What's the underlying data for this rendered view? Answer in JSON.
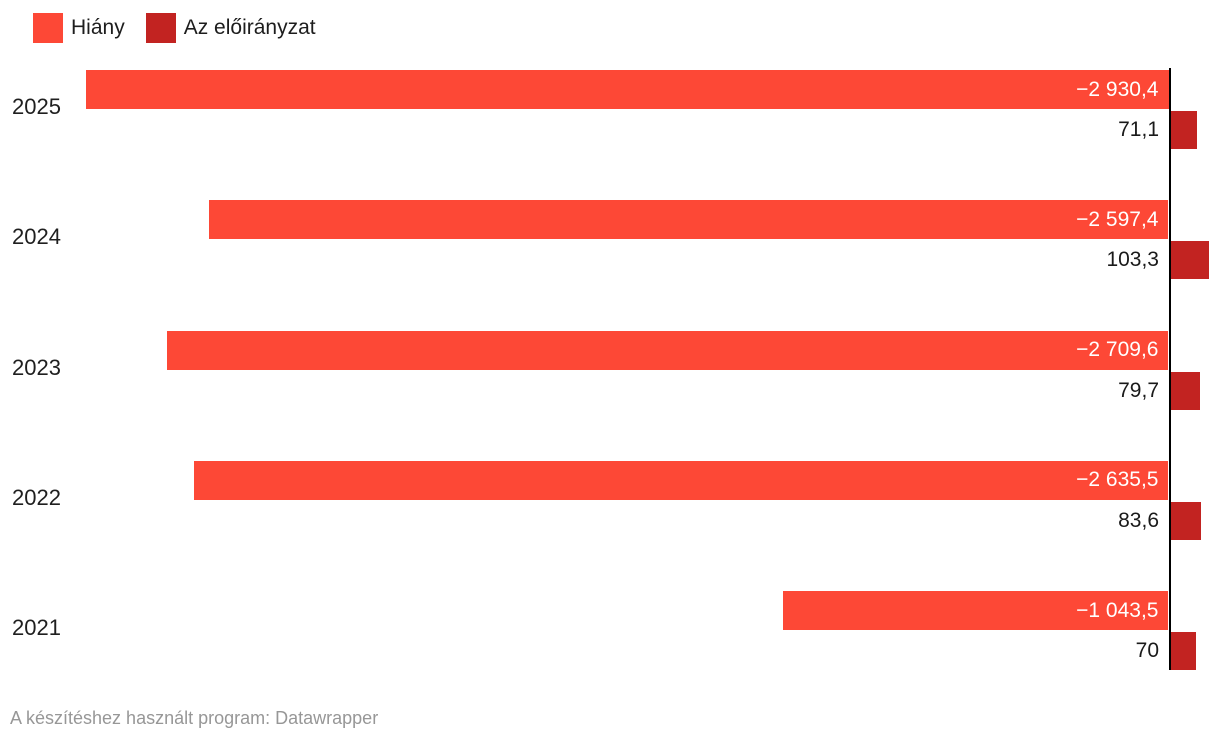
{
  "legend": {
    "items": [
      {
        "label": "Hiány",
        "color": "#fd4836"
      },
      {
        "label": "Az előirányzat",
        "color": "#c22321"
      }
    ]
  },
  "footer": {
    "text": "A készítéshez használt program: Datawrapper"
  },
  "chart_data": {
    "type": "bar",
    "orientation": "horizontal",
    "title": "",
    "xlabel": "",
    "ylabel": "",
    "categories": [
      "2025",
      "2024",
      "2023",
      "2022",
      "2021"
    ],
    "series": [
      {
        "name": "Hiány",
        "color": "#fd4836",
        "values": [
          -2930.4,
          -2597.4,
          -2709.6,
          -2635.5,
          -1043.5
        ],
        "labels": [
          "−2 930,4",
          "−2 597,4",
          "−2 709,6",
          "−2 635,5",
          "−1 043,5"
        ],
        "label_color": "#ffffff",
        "label_position": "inside-end"
      },
      {
        "name": "Az előirányzat",
        "color": "#c22321",
        "values": [
          71.1,
          103.3,
          79.7,
          83.6,
          70
        ],
        "labels": [
          "71,1",
          "103,3",
          "79,7",
          "83,6",
          "70"
        ],
        "label_color": "#1a1a1a",
        "label_position": "outside-left-of-baseline"
      }
    ],
    "xlim": [
      -2930.4,
      140
    ],
    "baseline": 0,
    "grid": false,
    "value_axis_visible": false,
    "legend_position": "top-left",
    "baseline_color": "#000000"
  }
}
